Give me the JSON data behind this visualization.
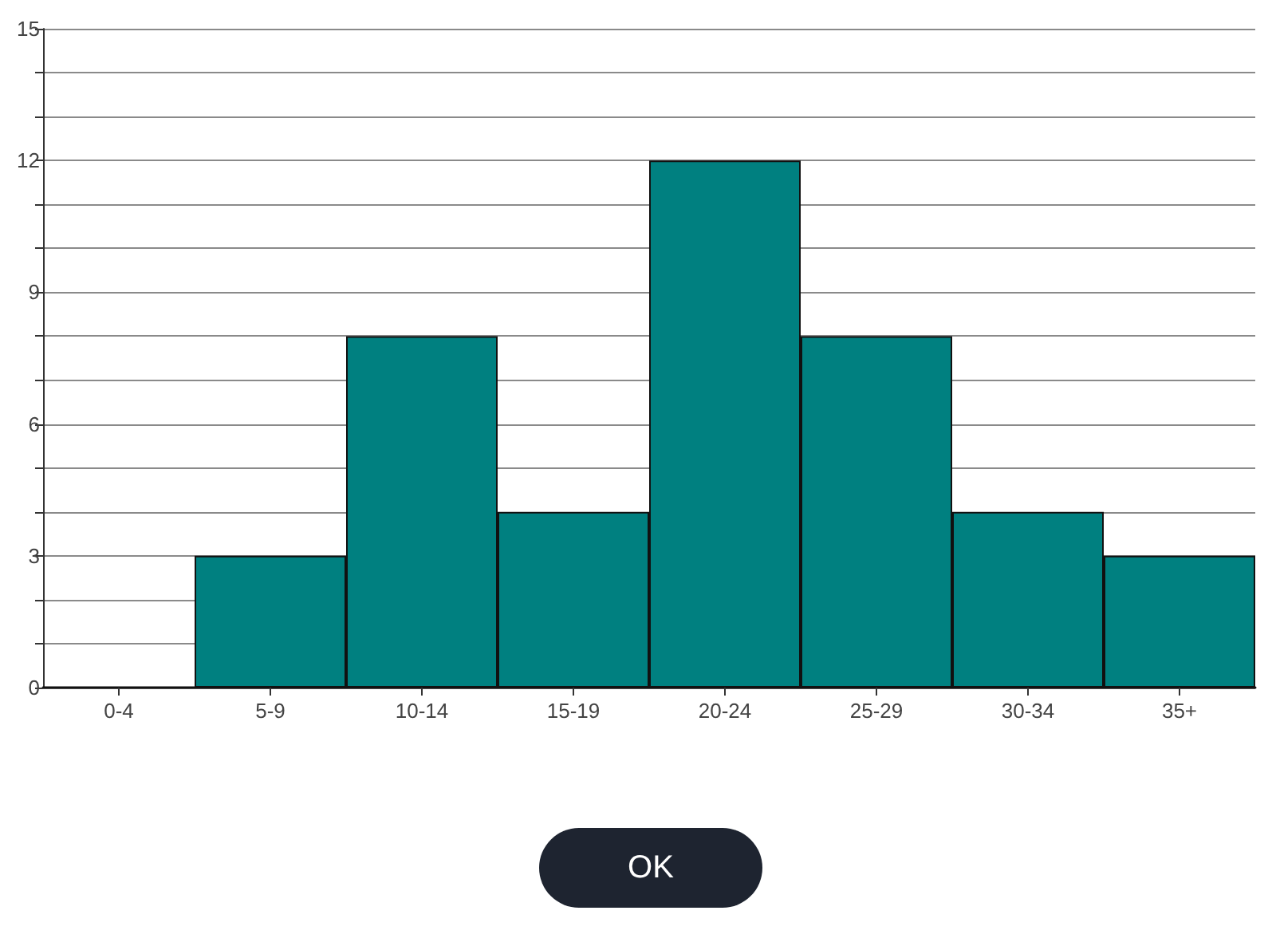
{
  "chart_data": {
    "type": "bar",
    "categories": [
      "0-4",
      "5-9",
      "10-14",
      "15-19",
      "20-24",
      "25-29",
      "30-34",
      "35+"
    ],
    "values": [
      0,
      3,
      8,
      4,
      12,
      8,
      4,
      3
    ],
    "color": "#008080",
    "ylim": [
      0,
      15
    ],
    "yticks": [
      0,
      {
        "value": 1,
        "label": null
      },
      {
        "value": 2,
        "label": null
      },
      3,
      {
        "value": 4,
        "label": null
      },
      {
        "value": 5,
        "label": null
      },
      6,
      {
        "value": 7,
        "label": null
      },
      {
        "value": 8,
        "label": null
      },
      9,
      {
        "value": 10,
        "label": null
      },
      {
        "value": 11,
        "label": null
      },
      12,
      {
        "value": 13,
        "label": null
      },
      {
        "value": 14,
        "label": null
      },
      15
    ],
    "grid": "y",
    "annotations": [
      "OK"
    ]
  }
}
